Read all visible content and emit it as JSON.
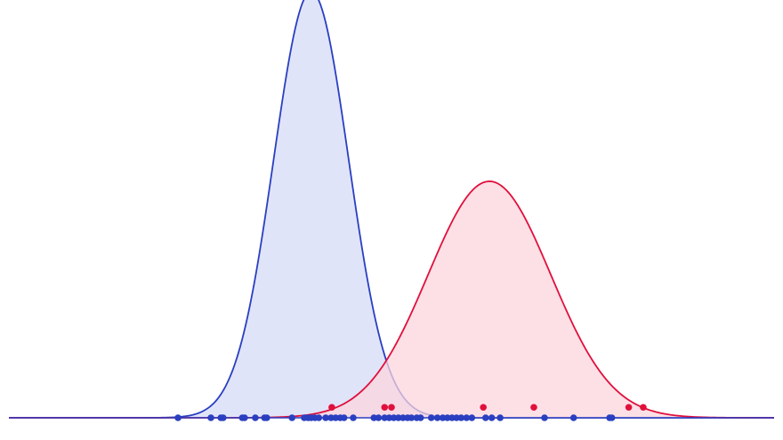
{
  "chart_data": {
    "type": "density",
    "xlim": [
      0,
      100
    ],
    "ylim": [
      0,
      100
    ],
    "series": [
      {
        "color": "#2a3fc0",
        "fill": "#dde1f8",
        "mean": 39.5,
        "sd": 4.9,
        "peak": 102,
        "point_y": 0,
        "points": [
          22.1,
          26.4,
          27.7,
          28.0,
          30.5,
          30.8,
          32.2,
          33.4,
          33.7,
          37.0,
          38.6,
          39.1,
          39.5,
          40.0,
          40.5,
          41.4,
          42.1,
          42.7,
          43.3,
          43.8,
          45.0,
          47.7,
          48.3,
          49.1,
          49.7,
          50.3,
          50.9,
          51.5,
          52.1,
          52.6,
          53.3,
          53.8,
          55.2,
          56.0,
          56.7,
          57.3,
          57.9,
          58.5,
          59.1,
          59.8,
          60.5,
          62.3,
          63.1,
          64.2,
          70.0,
          73.8,
          78.5,
          78.8
        ]
      },
      {
        "color": "#e0103c",
        "fill": "#fcd6de",
        "mean": 62.8,
        "sd": 8.0,
        "peak": 56.6,
        "point_y": 2.5,
        "points": [
          42.2,
          49.1,
          50.0,
          62.0,
          68.6,
          81.0,
          82.9
        ]
      }
    ]
  }
}
